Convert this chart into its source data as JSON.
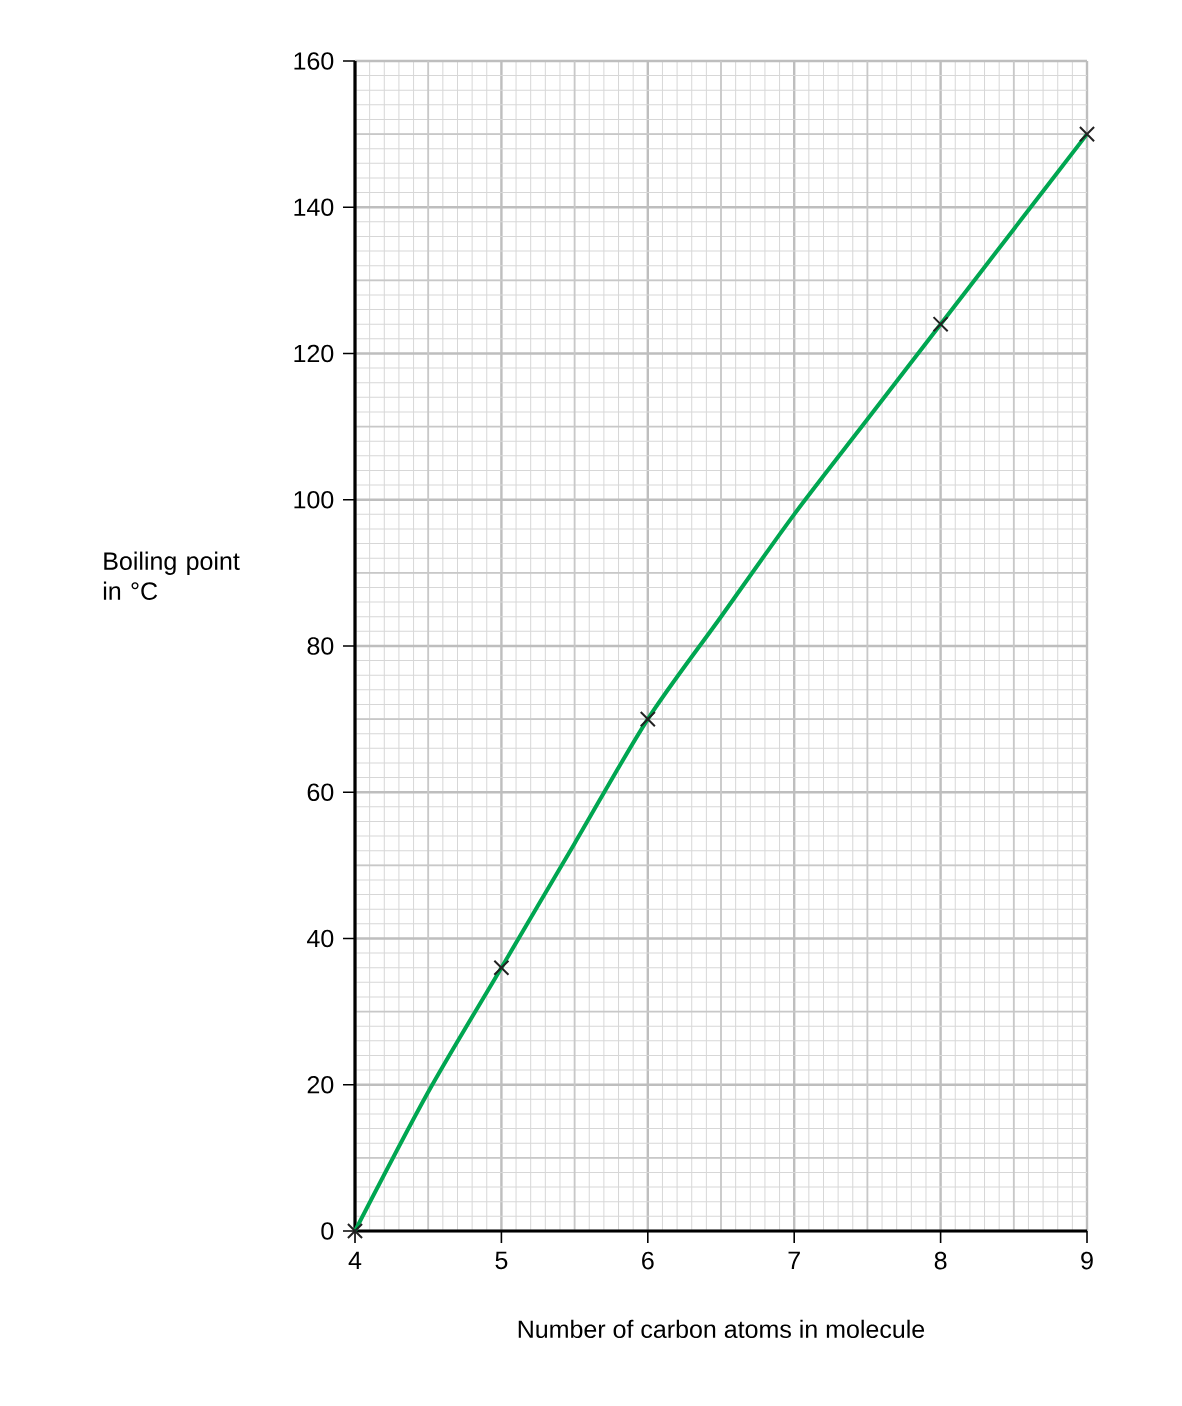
{
  "chart_data": {
    "type": "line",
    "xlabel": "Number of carbon atoms in molecule",
    "ylabel": "Boiling point in °C",
    "xlim": [
      4,
      9
    ],
    "ylim": [
      0,
      160
    ],
    "xticks": [
      4,
      5,
      6,
      7,
      8,
      9
    ],
    "yticks": [
      0,
      20,
      40,
      60,
      80,
      100,
      120,
      140,
      160
    ],
    "grid": true,
    "series": [
      {
        "type": "scatter",
        "marker": "cross",
        "color": "#222222",
        "x": [
          4,
          5,
          6,
          8,
          9
        ],
        "values": [
          0,
          36,
          70,
          124,
          150
        ]
      },
      {
        "marker": "none",
        "color": "#00a651",
        "x": [
          4,
          4.5,
          5,
          5.5,
          6,
          6.5,
          7,
          7.5,
          8,
          8.5,
          9
        ],
        "values": [
          0,
          19,
          36,
          53,
          70,
          84,
          98,
          111,
          124,
          137,
          150
        ]
      }
    ]
  }
}
